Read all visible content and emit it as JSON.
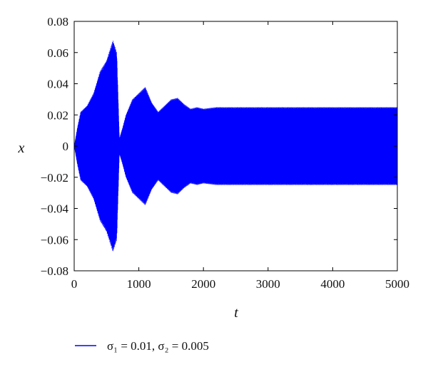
{
  "chart_data": {
    "type": "line",
    "xlabel": "t",
    "ylabel": "x",
    "xlim": [
      0,
      5000
    ],
    "ylim": [
      -0.08,
      0.08
    ],
    "x_ticks": [
      "0",
      "1000",
      "2000",
      "3000",
      "4000",
      "5000"
    ],
    "y_ticks": [
      "0.08",
      "0.06",
      "0.04",
      "0.02",
      "0",
      "−0.02",
      "−0.04",
      "−0.06",
      "−0.08"
    ],
    "legend_position": "bottom",
    "series": [
      {
        "legend_label": "σ₁ = 0.01, σ₂ = 0.005",
        "color": "#0000ff",
        "envelope_t": [
          0,
          50,
          100,
          200,
          300,
          400,
          500,
          600,
          660,
          700,
          750,
          800,
          900,
          1000,
          1100,
          1200,
          1300,
          1400,
          1500,
          1600,
          1700,
          1800,
          1900,
          2000,
          2200,
          2400,
          2600,
          2800,
          3000,
          3500,
          4000,
          4500,
          5000
        ],
        "envelope_max": [
          0.0,
          0.012,
          0.022,
          0.026,
          0.034,
          0.048,
          0.055,
          0.068,
          0.06,
          0.005,
          0.012,
          0.02,
          0.03,
          0.034,
          0.038,
          0.028,
          0.022,
          0.026,
          0.03,
          0.031,
          0.027,
          0.024,
          0.025,
          0.024,
          0.025,
          0.025,
          0.025,
          0.025,
          0.025,
          0.025,
          0.025,
          0.025,
          0.025
        ]
      }
    ]
  }
}
